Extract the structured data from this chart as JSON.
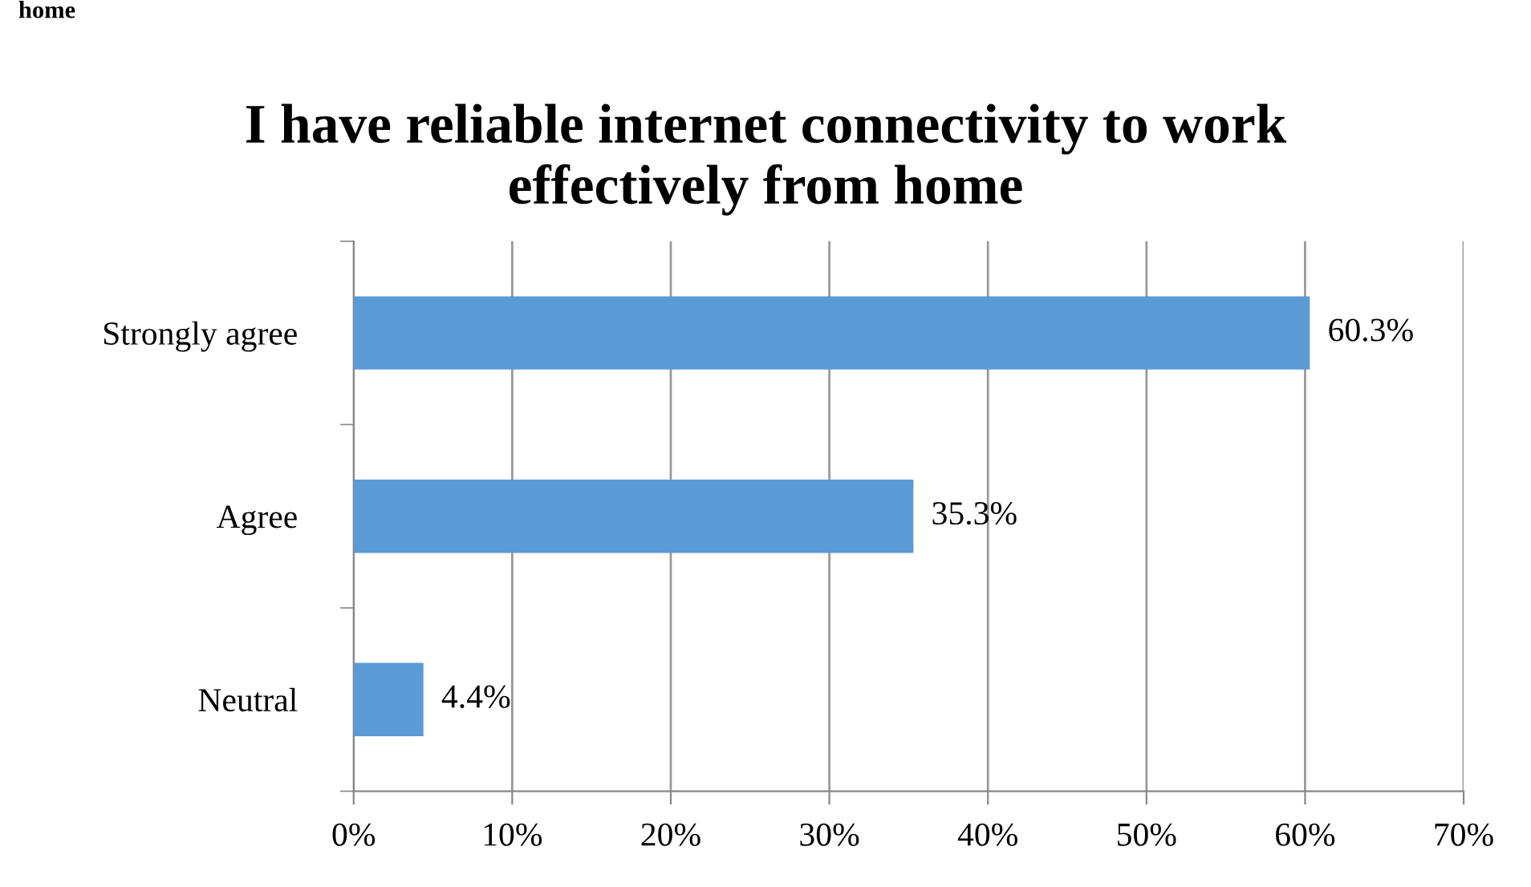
{
  "chart_data": {
    "type": "bar",
    "orientation": "horizontal",
    "title": "I have reliable internet connectivity to work\neffectively from home",
    "annotations": [
      "home"
    ],
    "categories": [
      "Strongly agree",
      "Agree",
      "Neutral"
    ],
    "values": [
      60.3,
      35.3,
      4.4
    ],
    "value_labels": [
      "60.3%",
      "35.3%",
      "4.4%"
    ],
    "color": "#5b9bd5",
    "xlim": [
      0,
      70
    ],
    "xticks": [
      {
        "value": 0,
        "label": "0%"
      },
      {
        "value": 10,
        "label": "10%"
      },
      {
        "value": 20,
        "label": "20%"
      },
      {
        "value": 30,
        "label": "30%"
      },
      {
        "value": 40,
        "label": "40%"
      },
      {
        "value": 50,
        "label": "50%"
      },
      {
        "value": 60,
        "label": "60%"
      },
      {
        "value": 70,
        "label": "70%"
      }
    ],
    "grid": "x",
    "legend": false
  }
}
